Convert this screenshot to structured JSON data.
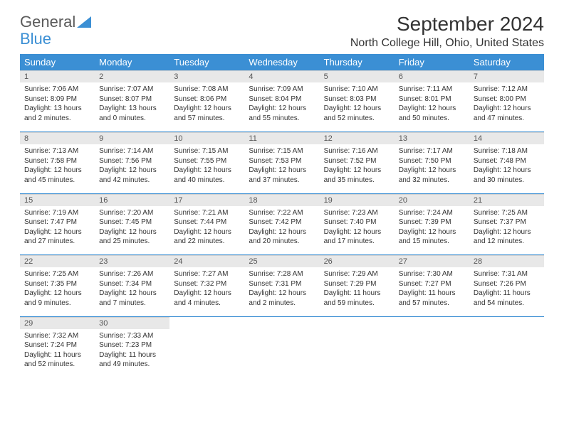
{
  "logo": {
    "text1": "General",
    "text2": "Blue"
  },
  "title": "September 2024",
  "location": "North College Hill, Ohio, United States",
  "colors": {
    "header_bg": "#3b8fd4",
    "header_text": "#ffffff",
    "daynum_bg": "#e8e8e8",
    "text": "#333333",
    "divider": "#3b8fd4"
  },
  "day_headers": [
    "Sunday",
    "Monday",
    "Tuesday",
    "Wednesday",
    "Thursday",
    "Friday",
    "Saturday"
  ],
  "weeks": [
    [
      {
        "n": "1",
        "sr": "7:06 AM",
        "ss": "8:09 PM",
        "dl": "13 hours and 2 minutes."
      },
      {
        "n": "2",
        "sr": "7:07 AM",
        "ss": "8:07 PM",
        "dl": "13 hours and 0 minutes."
      },
      {
        "n": "3",
        "sr": "7:08 AM",
        "ss": "8:06 PM",
        "dl": "12 hours and 57 minutes."
      },
      {
        "n": "4",
        "sr": "7:09 AM",
        "ss": "8:04 PM",
        "dl": "12 hours and 55 minutes."
      },
      {
        "n": "5",
        "sr": "7:10 AM",
        "ss": "8:03 PM",
        "dl": "12 hours and 52 minutes."
      },
      {
        "n": "6",
        "sr": "7:11 AM",
        "ss": "8:01 PM",
        "dl": "12 hours and 50 minutes."
      },
      {
        "n": "7",
        "sr": "7:12 AM",
        "ss": "8:00 PM",
        "dl": "12 hours and 47 minutes."
      }
    ],
    [
      {
        "n": "8",
        "sr": "7:13 AM",
        "ss": "7:58 PM",
        "dl": "12 hours and 45 minutes."
      },
      {
        "n": "9",
        "sr": "7:14 AM",
        "ss": "7:56 PM",
        "dl": "12 hours and 42 minutes."
      },
      {
        "n": "10",
        "sr": "7:15 AM",
        "ss": "7:55 PM",
        "dl": "12 hours and 40 minutes."
      },
      {
        "n": "11",
        "sr": "7:15 AM",
        "ss": "7:53 PM",
        "dl": "12 hours and 37 minutes."
      },
      {
        "n": "12",
        "sr": "7:16 AM",
        "ss": "7:52 PM",
        "dl": "12 hours and 35 minutes."
      },
      {
        "n": "13",
        "sr": "7:17 AM",
        "ss": "7:50 PM",
        "dl": "12 hours and 32 minutes."
      },
      {
        "n": "14",
        "sr": "7:18 AM",
        "ss": "7:48 PM",
        "dl": "12 hours and 30 minutes."
      }
    ],
    [
      {
        "n": "15",
        "sr": "7:19 AM",
        "ss": "7:47 PM",
        "dl": "12 hours and 27 minutes."
      },
      {
        "n": "16",
        "sr": "7:20 AM",
        "ss": "7:45 PM",
        "dl": "12 hours and 25 minutes."
      },
      {
        "n": "17",
        "sr": "7:21 AM",
        "ss": "7:44 PM",
        "dl": "12 hours and 22 minutes."
      },
      {
        "n": "18",
        "sr": "7:22 AM",
        "ss": "7:42 PM",
        "dl": "12 hours and 20 minutes."
      },
      {
        "n": "19",
        "sr": "7:23 AM",
        "ss": "7:40 PM",
        "dl": "12 hours and 17 minutes."
      },
      {
        "n": "20",
        "sr": "7:24 AM",
        "ss": "7:39 PM",
        "dl": "12 hours and 15 minutes."
      },
      {
        "n": "21",
        "sr": "7:25 AM",
        "ss": "7:37 PM",
        "dl": "12 hours and 12 minutes."
      }
    ],
    [
      {
        "n": "22",
        "sr": "7:25 AM",
        "ss": "7:35 PM",
        "dl": "12 hours and 9 minutes."
      },
      {
        "n": "23",
        "sr": "7:26 AM",
        "ss": "7:34 PM",
        "dl": "12 hours and 7 minutes."
      },
      {
        "n": "24",
        "sr": "7:27 AM",
        "ss": "7:32 PM",
        "dl": "12 hours and 4 minutes."
      },
      {
        "n": "25",
        "sr": "7:28 AM",
        "ss": "7:31 PM",
        "dl": "12 hours and 2 minutes."
      },
      {
        "n": "26",
        "sr": "7:29 AM",
        "ss": "7:29 PM",
        "dl": "11 hours and 59 minutes."
      },
      {
        "n": "27",
        "sr": "7:30 AM",
        "ss": "7:27 PM",
        "dl": "11 hours and 57 minutes."
      },
      {
        "n": "28",
        "sr": "7:31 AM",
        "ss": "7:26 PM",
        "dl": "11 hours and 54 minutes."
      }
    ],
    [
      {
        "n": "29",
        "sr": "7:32 AM",
        "ss": "7:24 PM",
        "dl": "11 hours and 52 minutes."
      },
      {
        "n": "30",
        "sr": "7:33 AM",
        "ss": "7:23 PM",
        "dl": "11 hours and 49 minutes."
      },
      null,
      null,
      null,
      null,
      null
    ]
  ],
  "labels": {
    "sunrise": "Sunrise:",
    "sunset": "Sunset:",
    "daylight": "Daylight:"
  }
}
